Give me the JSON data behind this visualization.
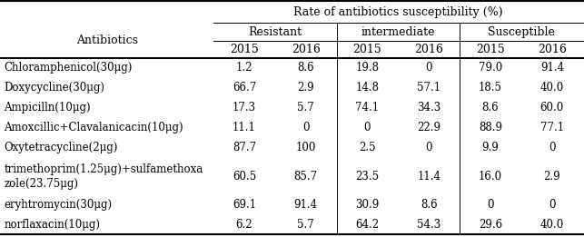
{
  "title": "Rate of antibiotics susceptibility (%)",
  "col_groups": [
    "Resistant",
    "intermediate",
    "Susceptible"
  ],
  "years": [
    "2015",
    "2016",
    "2015",
    "2016",
    "2015",
    "2016"
  ],
  "antibiotics": [
    "Chloramphenicol(30μg)",
    "Doxycycline(30μg)",
    "Ampicilln(10μg)",
    "Amoxcillic+Clavalanicacin(10μg)",
    "Oxytetracycline(2μg)",
    "trimethoprim(1.25μg)+sulfamethoxa\nzole(23.75μg)",
    "eryhtromycin(30μg)",
    "norflaxacin(10μg)"
  ],
  "data_str_vals": [
    [
      "1.2",
      "8.6",
      "19.8",
      "0",
      "79.0",
      "91.4"
    ],
    [
      "66.7",
      "2.9",
      "14.8",
      "57.1",
      "18.5",
      "40.0"
    ],
    [
      "17.3",
      "5.7",
      "74.1",
      "34.3",
      "8.6",
      "60.0"
    ],
    [
      "11.1",
      "0",
      "0",
      "22.9",
      "88.9",
      "77.1"
    ],
    [
      "87.7",
      "100",
      "2.5",
      "0",
      "9.9",
      "0"
    ],
    [
      "60.5",
      "85.7",
      "23.5",
      "11.4",
      "16.0",
      "2.9"
    ],
    [
      "69.1",
      "91.4",
      "30.9",
      "8.6",
      "0",
      "0"
    ],
    [
      "6.2",
      "5.7",
      "64.2",
      "54.3",
      "29.6",
      "40.0"
    ]
  ],
  "bg_color": "#ffffff",
  "text_color": "#000000",
  "border_color": "#000000",
  "font_family": "serif",
  "title_fontsize": 9,
  "header_fontsize": 9,
  "cell_fontsize": 8.5
}
